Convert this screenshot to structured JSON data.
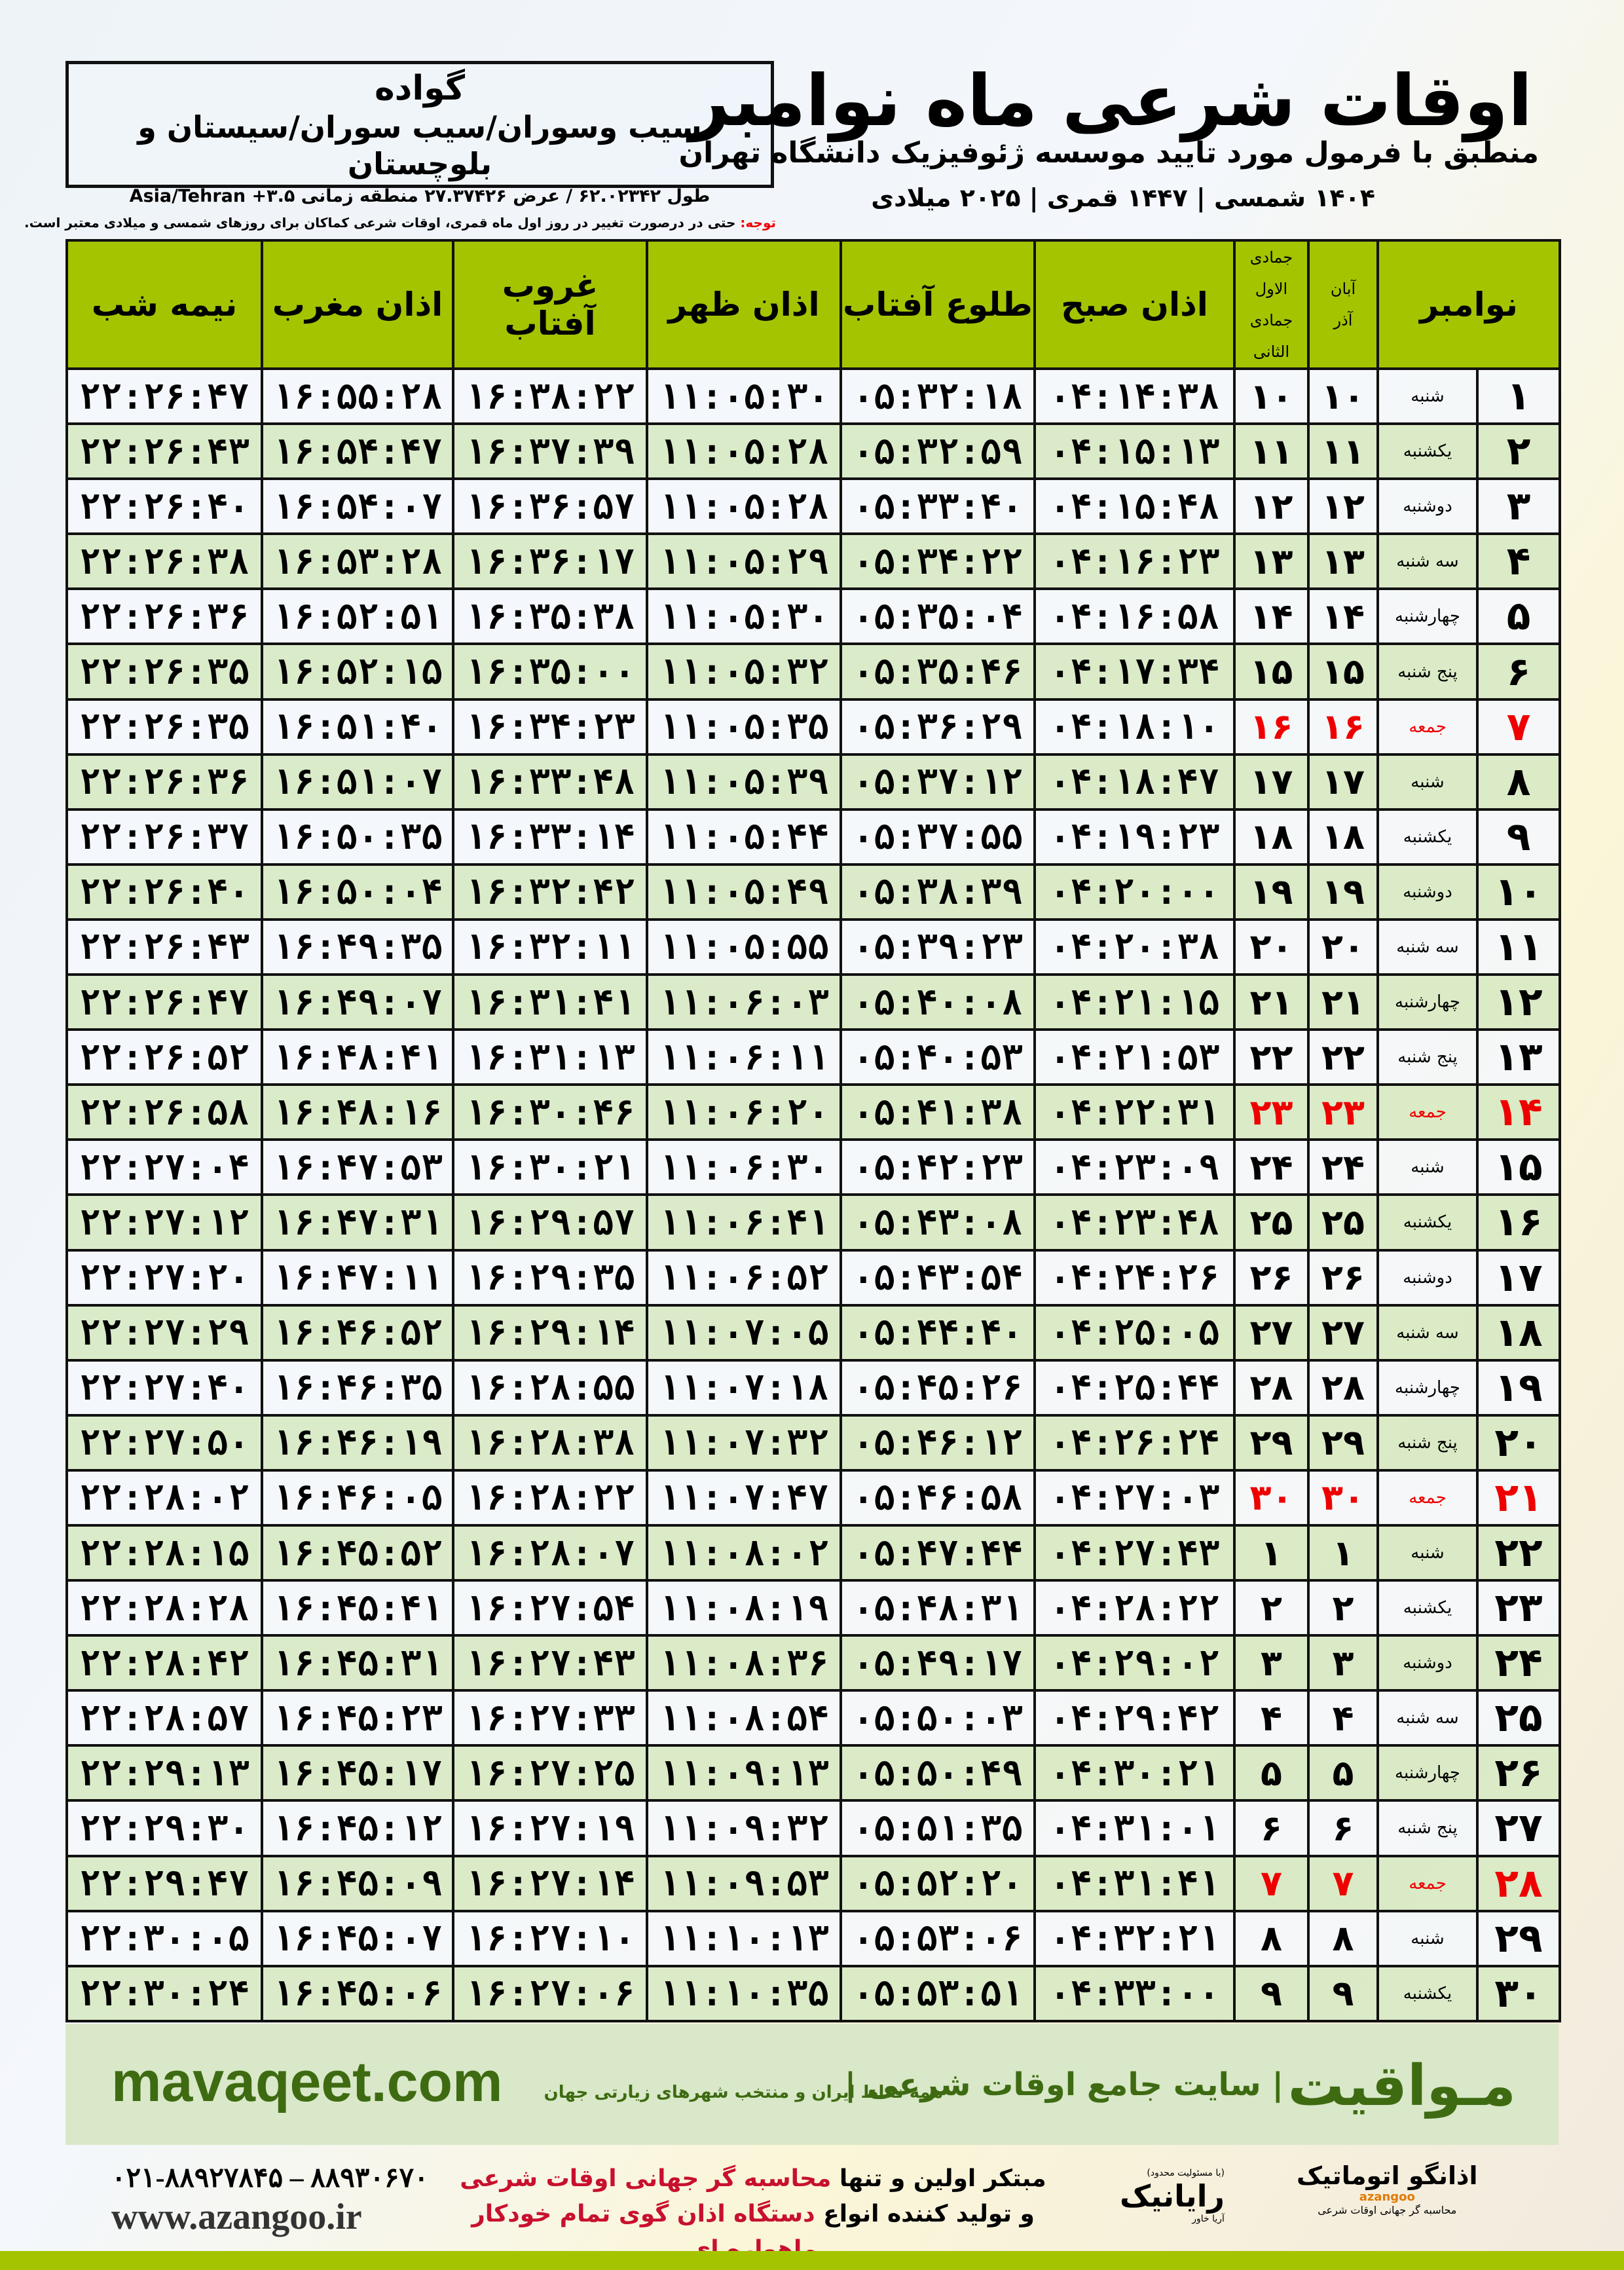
{
  "location": {
    "city": "گواده",
    "region": "سیب وسوران/سیب سوران/سیستان و بلوچستان",
    "coords": "طول ۶۲.۰۲۳۴۲ / عرض ۲۷.۳۷۴۲۶ منطقه زمانی ۳.۵+ Asia/Tehran"
  },
  "header": {
    "title": "اوقات شرعی ماه نوامبر",
    "subtitle": "منطبق با فرمول مورد تایید موسسه ژئوفیزیک دانشگاه تهران",
    "dates": "۱۴۰۴ شمسی | ۱۴۴۷ قمری | ۲۰۲۵ میلادی"
  },
  "note": {
    "label": "توجه:",
    "text": " حتی در درصورت تغییر در روز اول ماه قمری، اوقات شرعی کماکان برای روزهای شمسی و میلادی معتبر است."
  },
  "columns": {
    "month": "نوامبر",
    "shamsi_1": "آبان",
    "shamsi_2": "آذر",
    "qamari_1": "جمادی الاول",
    "qamari_2": "جمادی الثانی",
    "fajr": "اذان صبح",
    "sunrise": "طلوع آفتاب",
    "dhuhr": "اذان ظهر",
    "sunset": "غروب آفتاب",
    "maghrib": "اذان مغرب",
    "midnight": "نیمه شب"
  },
  "colors": {
    "header_green": "#a5c400",
    "row_green": "#d8e9c4",
    "friday_red": "#e00000",
    "brand_green": "#3e6b12"
  },
  "rows": [
    {
      "day": "۱",
      "weekday": "شنبه",
      "shamsi": "۱۰",
      "qamari": "۱۰",
      "fajr": "۰۴:۱۴:۳۸",
      "sunrise": "۰۵:۳۲:۱۸",
      "dhuhr": "۱۱:۰۵:۳۰",
      "sunset": "۱۶:۳۸:۲۲",
      "maghrib": "۱۶:۵۵:۲۸",
      "midnight": "۲۲:۲۶:۴۷"
    },
    {
      "day": "۲",
      "weekday": "یکشنبه",
      "shamsi": "۱۱",
      "qamari": "۱۱",
      "fajr": "۰۴:۱۵:۱۳",
      "sunrise": "۰۵:۳۲:۵۹",
      "dhuhr": "۱۱:۰۵:۲۸",
      "sunset": "۱۶:۳۷:۳۹",
      "maghrib": "۱۶:۵۴:۴۷",
      "midnight": "۲۲:۲۶:۴۳"
    },
    {
      "day": "۳",
      "weekday": "دوشنبه",
      "shamsi": "۱۲",
      "qamari": "۱۲",
      "fajr": "۰۴:۱۵:۴۸",
      "sunrise": "۰۵:۳۳:۴۰",
      "dhuhr": "۱۱:۰۵:۲۸",
      "sunset": "۱۶:۳۶:۵۷",
      "maghrib": "۱۶:۵۴:۰۷",
      "midnight": "۲۲:۲۶:۴۰"
    },
    {
      "day": "۴",
      "weekday": "سه شنبه",
      "shamsi": "۱۳",
      "qamari": "۱۳",
      "fajr": "۰۴:۱۶:۲۳",
      "sunrise": "۰۵:۳۴:۲۲",
      "dhuhr": "۱۱:۰۵:۲۹",
      "sunset": "۱۶:۳۶:۱۷",
      "maghrib": "۱۶:۵۳:۲۸",
      "midnight": "۲۲:۲۶:۳۸"
    },
    {
      "day": "۵",
      "weekday": "چهارشنبه",
      "shamsi": "۱۴",
      "qamari": "۱۴",
      "fajr": "۰۴:۱۶:۵۸",
      "sunrise": "۰۵:۳۵:۰۴",
      "dhuhr": "۱۱:۰۵:۳۰",
      "sunset": "۱۶:۳۵:۳۸",
      "maghrib": "۱۶:۵۲:۵۱",
      "midnight": "۲۲:۲۶:۳۶"
    },
    {
      "day": "۶",
      "weekday": "پنج شنبه",
      "shamsi": "۱۵",
      "qamari": "۱۵",
      "fajr": "۰۴:۱۷:۳۴",
      "sunrise": "۰۵:۳۵:۴۶",
      "dhuhr": "۱۱:۰۵:۳۲",
      "sunset": "۱۶:۳۵:۰۰",
      "maghrib": "۱۶:۵۲:۱۵",
      "midnight": "۲۲:۲۶:۳۵"
    },
    {
      "day": "۷",
      "weekday": "جمعه",
      "shamsi": "۱۶",
      "qamari": "۱۶",
      "fajr": "۰۴:۱۸:۱۰",
      "sunrise": "۰۵:۳۶:۲۹",
      "dhuhr": "۱۱:۰۵:۳۵",
      "sunset": "۱۶:۳۴:۲۳",
      "maghrib": "۱۶:۵۱:۴۰",
      "midnight": "۲۲:۲۶:۳۵",
      "friday": true
    },
    {
      "day": "۸",
      "weekday": "شنبه",
      "shamsi": "۱۷",
      "qamari": "۱۷",
      "fajr": "۰۴:۱۸:۴۷",
      "sunrise": "۰۵:۳۷:۱۲",
      "dhuhr": "۱۱:۰۵:۳۹",
      "sunset": "۱۶:۳۳:۴۸",
      "maghrib": "۱۶:۵۱:۰۷",
      "midnight": "۲۲:۲۶:۳۶"
    },
    {
      "day": "۹",
      "weekday": "یکشنبه",
      "shamsi": "۱۸",
      "qamari": "۱۸",
      "fajr": "۰۴:۱۹:۲۳",
      "sunrise": "۰۵:۳۷:۵۵",
      "dhuhr": "۱۱:۰۵:۴۴",
      "sunset": "۱۶:۳۳:۱۴",
      "maghrib": "۱۶:۵۰:۳۵",
      "midnight": "۲۲:۲۶:۳۷"
    },
    {
      "day": "۱۰",
      "weekday": "دوشنبه",
      "shamsi": "۱۹",
      "qamari": "۱۹",
      "fajr": "۰۴:۲۰:۰۰",
      "sunrise": "۰۵:۳۸:۳۹",
      "dhuhr": "۱۱:۰۵:۴۹",
      "sunset": "۱۶:۳۲:۴۲",
      "maghrib": "۱۶:۵۰:۰۴",
      "midnight": "۲۲:۲۶:۴۰"
    },
    {
      "day": "۱۱",
      "weekday": "سه شنبه",
      "shamsi": "۲۰",
      "qamari": "۲۰",
      "fajr": "۰۴:۲۰:۳۸",
      "sunrise": "۰۵:۳۹:۲۳",
      "dhuhr": "۱۱:۰۵:۵۵",
      "sunset": "۱۶:۳۲:۱۱",
      "maghrib": "۱۶:۴۹:۳۵",
      "midnight": "۲۲:۲۶:۴۳"
    },
    {
      "day": "۱۲",
      "weekday": "چهارشنبه",
      "shamsi": "۲۱",
      "qamari": "۲۱",
      "fajr": "۰۴:۲۱:۱۵",
      "sunrise": "۰۵:۴۰:۰۸",
      "dhuhr": "۱۱:۰۶:۰۳",
      "sunset": "۱۶:۳۱:۴۱",
      "maghrib": "۱۶:۴۹:۰۷",
      "midnight": "۲۲:۲۶:۴۷"
    },
    {
      "day": "۱۳",
      "weekday": "پنج شنبه",
      "shamsi": "۲۲",
      "qamari": "۲۲",
      "fajr": "۰۴:۲۱:۵۳",
      "sunrise": "۰۵:۴۰:۵۳",
      "dhuhr": "۱۱:۰۶:۱۱",
      "sunset": "۱۶:۳۱:۱۳",
      "maghrib": "۱۶:۴۸:۴۱",
      "midnight": "۲۲:۲۶:۵۲"
    },
    {
      "day": "۱۴",
      "weekday": "جمعه",
      "shamsi": "۲۳",
      "qamari": "۲۳",
      "fajr": "۰۴:۲۲:۳۱",
      "sunrise": "۰۵:۴۱:۳۸",
      "dhuhr": "۱۱:۰۶:۲۰",
      "sunset": "۱۶:۳۰:۴۶",
      "maghrib": "۱۶:۴۸:۱۶",
      "midnight": "۲۲:۲۶:۵۸",
      "friday": true
    },
    {
      "day": "۱۵",
      "weekday": "شنبه",
      "shamsi": "۲۴",
      "qamari": "۲۴",
      "fajr": "۰۴:۲۳:۰۹",
      "sunrise": "۰۵:۴۲:۲۳",
      "dhuhr": "۱۱:۰۶:۳۰",
      "sunset": "۱۶:۳۰:۲۱",
      "maghrib": "۱۶:۴۷:۵۳",
      "midnight": "۲۲:۲۷:۰۴"
    },
    {
      "day": "۱۶",
      "weekday": "یکشنبه",
      "shamsi": "۲۵",
      "qamari": "۲۵",
      "fajr": "۰۴:۲۳:۴۸",
      "sunrise": "۰۵:۴۳:۰۸",
      "dhuhr": "۱۱:۰۶:۴۱",
      "sunset": "۱۶:۲۹:۵۷",
      "maghrib": "۱۶:۴۷:۳۱",
      "midnight": "۲۲:۲۷:۱۲"
    },
    {
      "day": "۱۷",
      "weekday": "دوشنبه",
      "shamsi": "۲۶",
      "qamari": "۲۶",
      "fajr": "۰۴:۲۴:۲۶",
      "sunrise": "۰۵:۴۳:۵۴",
      "dhuhr": "۱۱:۰۶:۵۲",
      "sunset": "۱۶:۲۹:۳۵",
      "maghrib": "۱۶:۴۷:۱۱",
      "midnight": "۲۲:۲۷:۲۰"
    },
    {
      "day": "۱۸",
      "weekday": "سه شنبه",
      "shamsi": "۲۷",
      "qamari": "۲۷",
      "fajr": "۰۴:۲۵:۰۵",
      "sunrise": "۰۵:۴۴:۴۰",
      "dhuhr": "۱۱:۰۷:۰۵",
      "sunset": "۱۶:۲۹:۱۴",
      "maghrib": "۱۶:۴۶:۵۲",
      "midnight": "۲۲:۲۷:۲۹"
    },
    {
      "day": "۱۹",
      "weekday": "چهارشنبه",
      "shamsi": "۲۸",
      "qamari": "۲۸",
      "fajr": "۰۴:۲۵:۴۴",
      "sunrise": "۰۵:۴۵:۲۶",
      "dhuhr": "۱۱:۰۷:۱۸",
      "sunset": "۱۶:۲۸:۵۵",
      "maghrib": "۱۶:۴۶:۳۵",
      "midnight": "۲۲:۲۷:۴۰"
    },
    {
      "day": "۲۰",
      "weekday": "پنج شنبه",
      "shamsi": "۲۹",
      "qamari": "۲۹",
      "fajr": "۰۴:۲۶:۲۴",
      "sunrise": "۰۵:۴۶:۱۲",
      "dhuhr": "۱۱:۰۷:۳۲",
      "sunset": "۱۶:۲۸:۳۸",
      "maghrib": "۱۶:۴۶:۱۹",
      "midnight": "۲۲:۲۷:۵۰"
    },
    {
      "day": "۲۱",
      "weekday": "جمعه",
      "shamsi": "۳۰",
      "qamari": "۳۰",
      "fajr": "۰۴:۲۷:۰۳",
      "sunrise": "۰۵:۴۶:۵۸",
      "dhuhr": "۱۱:۰۷:۴۷",
      "sunset": "۱۶:۲۸:۲۲",
      "maghrib": "۱۶:۴۶:۰۵",
      "midnight": "۲۲:۲۸:۰۲",
      "friday": true
    },
    {
      "day": "۲۲",
      "weekday": "شنبه",
      "shamsi": "۱",
      "qamari": "۱",
      "fajr": "۰۴:۲۷:۴۳",
      "sunrise": "۰۵:۴۷:۴۴",
      "dhuhr": "۱۱:۰۸:۰۲",
      "sunset": "۱۶:۲۸:۰۷",
      "maghrib": "۱۶:۴۵:۵۲",
      "midnight": "۲۲:۲۸:۱۵"
    },
    {
      "day": "۲۳",
      "weekday": "یکشنبه",
      "shamsi": "۲",
      "qamari": "۲",
      "fajr": "۰۴:۲۸:۲۲",
      "sunrise": "۰۵:۴۸:۳۱",
      "dhuhr": "۱۱:۰۸:۱۹",
      "sunset": "۱۶:۲۷:۵۴",
      "maghrib": "۱۶:۴۵:۴۱",
      "midnight": "۲۲:۲۸:۲۸"
    },
    {
      "day": "۲۴",
      "weekday": "دوشنبه",
      "shamsi": "۳",
      "qamari": "۳",
      "fajr": "۰۴:۲۹:۰۲",
      "sunrise": "۰۵:۴۹:۱۷",
      "dhuhr": "۱۱:۰۸:۳۶",
      "sunset": "۱۶:۲۷:۴۳",
      "maghrib": "۱۶:۴۵:۳۱",
      "midnight": "۲۲:۲۸:۴۲"
    },
    {
      "day": "۲۵",
      "weekday": "سه شنبه",
      "shamsi": "۴",
      "qamari": "۴",
      "fajr": "۰۴:۲۹:۴۲",
      "sunrise": "۰۵:۵۰:۰۳",
      "dhuhr": "۱۱:۰۸:۵۴",
      "sunset": "۱۶:۲۷:۳۳",
      "maghrib": "۱۶:۴۵:۲۳",
      "midnight": "۲۲:۲۸:۵۷"
    },
    {
      "day": "۲۶",
      "weekday": "چهارشنبه",
      "shamsi": "۵",
      "qamari": "۵",
      "fajr": "۰۴:۳۰:۲۱",
      "sunrise": "۰۵:۵۰:۴۹",
      "dhuhr": "۱۱:۰۹:۱۳",
      "sunset": "۱۶:۲۷:۲۵",
      "maghrib": "۱۶:۴۵:۱۷",
      "midnight": "۲۲:۲۹:۱۳"
    },
    {
      "day": "۲۷",
      "weekday": "پنج شنبه",
      "shamsi": "۶",
      "qamari": "۶",
      "fajr": "۰۴:۳۱:۰۱",
      "sunrise": "۰۵:۵۱:۳۵",
      "dhuhr": "۱۱:۰۹:۳۲",
      "sunset": "۱۶:۲۷:۱۹",
      "maghrib": "۱۶:۴۵:۱۲",
      "midnight": "۲۲:۲۹:۳۰"
    },
    {
      "day": "۲۸",
      "weekday": "جمعه",
      "shamsi": "۷",
      "qamari": "۷",
      "fajr": "۰۴:۳۱:۴۱",
      "sunrise": "۰۵:۵۲:۲۰",
      "dhuhr": "۱۱:۰۹:۵۳",
      "sunset": "۱۶:۲۷:۱۴",
      "maghrib": "۱۶:۴۵:۰۹",
      "midnight": "۲۲:۲۹:۴۷",
      "friday": true
    },
    {
      "day": "۲۹",
      "weekday": "شنبه",
      "shamsi": "۸",
      "qamari": "۸",
      "fajr": "۰۴:۳۲:۲۱",
      "sunrise": "۰۵:۵۳:۰۶",
      "dhuhr": "۱۱:۱۰:۱۳",
      "sunset": "۱۶:۲۷:۱۰",
      "maghrib": "۱۶:۴۵:۰۷",
      "midnight": "۲۲:۳۰:۰۵"
    },
    {
      "day": "۳۰",
      "weekday": "یکشنبه",
      "shamsi": "۹",
      "qamari": "۹",
      "fajr": "۰۴:۳۳:۰۰",
      "sunrise": "۰۵:۵۳:۵۱",
      "dhuhr": "۱۱:۱۰:۳۵",
      "sunset": "۱۶:۲۷:۰۶",
      "maghrib": "۱۶:۴۵:۰۶",
      "midnight": "۲۲:۳۰:۲۴"
    }
  ],
  "banner": {
    "brand": "مـواقیت",
    "slogan": "| سایت جامع اوقات شرعی |",
    "sub": "همه نقاط ایران و منتخب شهرهای زیارتی جهان",
    "site": "mavaqeet.com"
  },
  "footer": {
    "phone": "۰۲۱-۸۸۹۲۷۸۴۵ – ۸۸۹۳۰۶۷۰",
    "web": "www.azangoo.ir",
    "line1_a": "مبتکر اولین و تنها ",
    "line1_b": "محاسبه گر جهانی اوقات شرعی",
    "line2_a": "و تولید کننده انواع ",
    "line2_b": "دستگاه اذان گوی تمام خودکار ماهواره ای",
    "rayanik_small": "(با مسئولیت محدود)",
    "rayanik": "رایانیک",
    "rayanik_sub": "آریا خاور",
    "azangoo": "اذانگو اتوماتیک",
    "azangoo_en": "azangoo",
    "azangoo_tag": "محاسبه گر جهانی اوقات شرعی"
  }
}
